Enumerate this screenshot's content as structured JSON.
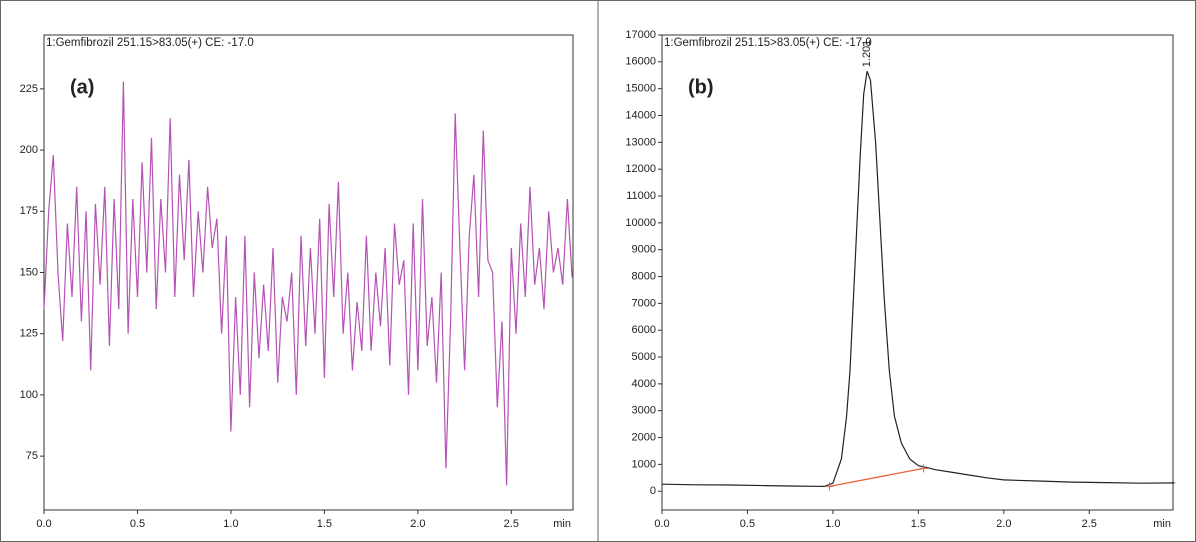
{
  "chart_data": [
    {
      "type": "line",
      "title": "1:Gemfibrozil 251.15>83.05(+) CE: -17.0",
      "panel_label": "(a)",
      "xlabel": "min",
      "color": "#b552b5",
      "x": [
        0,
        0.025,
        0.05,
        0.075,
        0.1,
        0.125,
        0.15,
        0.175,
        0.2,
        0.225,
        0.25,
        0.275,
        0.3,
        0.325,
        0.35,
        0.375,
        0.4,
        0.425,
        0.45,
        0.475,
        0.5,
        0.525,
        0.55,
        0.575,
        0.6,
        0.625,
        0.65,
        0.675,
        0.7,
        0.725,
        0.75,
        0.775,
        0.8,
        0.825,
        0.85,
        0.875,
        0.9,
        0.925,
        0.95,
        0.975,
        1,
        1.025,
        1.05,
        1.075,
        1.1,
        1.125,
        1.15,
        1.175,
        1.2,
        1.225,
        1.25,
        1.275,
        1.3,
        1.325,
        1.35,
        1.375,
        1.4,
        1.425,
        1.45,
        1.475,
        1.5,
        1.525,
        1.55,
        1.575,
        1.6,
        1.625,
        1.65,
        1.675,
        1.7,
        1.725,
        1.75,
        1.775,
        1.8,
        1.825,
        1.85,
        1.875,
        1.9,
        1.925,
        1.95,
        1.975,
        2,
        2.025,
        2.05,
        2.075,
        2.1,
        2.125,
        2.15,
        2.175,
        2.2,
        2.225,
        2.25,
        2.275,
        2.3,
        2.325,
        2.35,
        2.375,
        2.4,
        2.425,
        2.45,
        2.475,
        2.5,
        2.525,
        2.55,
        2.575,
        2.6,
        2.625,
        2.65,
        2.675,
        2.7,
        2.725,
        2.75,
        2.775,
        2.8,
        2.825
      ],
      "values": [
        135,
        175,
        198,
        150,
        122,
        170,
        140,
        185,
        130,
        175,
        110,
        178,
        145,
        185,
        120,
        180,
        135,
        228,
        125,
        180,
        140,
        195,
        150,
        205,
        135,
        180,
        150,
        213,
        140,
        190,
        155,
        196,
        140,
        175,
        150,
        185,
        160,
        172,
        125,
        165,
        85,
        140,
        100,
        165,
        95,
        150,
        115,
        145,
        118,
        160,
        105,
        140,
        130,
        150,
        100,
        165,
        120,
        160,
        125,
        172,
        107,
        178,
        140,
        187,
        125,
        150,
        110,
        138,
        118,
        165,
        118,
        150,
        128,
        160,
        112,
        170,
        145,
        155,
        100,
        170,
        110,
        180,
        120,
        140,
        105,
        150,
        70,
        130,
        215,
        160,
        110,
        165,
        190,
        140,
        208,
        155,
        150,
        95,
        130,
        63,
        160,
        125,
        170,
        140,
        185,
        145,
        160,
        135,
        175,
        150,
        160,
        145,
        180,
        148
      ],
      "xlim": [
        0,
        2.83
      ],
      "ylim": [
        53,
        247
      ],
      "xticks": [
        {
          "value": 0,
          "label": "0.0"
        },
        0.5,
        {
          "value": 1,
          "label": "1.0"
        },
        1.5,
        {
          "value": 2,
          "label": "2.0"
        },
        2.5
      ],
      "yticks": [
        75,
        100,
        125,
        150,
        175,
        200,
        225
      ]
    },
    {
      "type": "line",
      "title": "1:Gemfibrozil 251.15>83.05(+) CE: -17.0",
      "panel_label": "(b)",
      "xlabel": "min",
      "color": "#222222",
      "x": [
        0,
        0.2,
        0.4,
        0.6,
        0.8,
        0.9,
        0.95,
        1.0,
        1.05,
        1.08,
        1.1,
        1.13,
        1.16,
        1.18,
        1.2,
        1.22,
        1.25,
        1.28,
        1.3,
        1.33,
        1.36,
        1.4,
        1.45,
        1.5,
        1.55,
        1.6,
        1.7,
        1.8,
        1.9,
        2.0,
        2.2,
        2.4,
        2.6,
        2.8,
        3.0
      ],
      "values": [
        260,
        240,
        230,
        210,
        190,
        185,
        180,
        300,
        1200,
        2800,
        4500,
        8500,
        12500,
        14800,
        15650,
        15300,
        13000,
        9500,
        7200,
        4500,
        2800,
        1800,
        1200,
        950,
        880,
        800,
        700,
        600,
        500,
        420,
        380,
        340,
        320,
        300,
        310
      ],
      "peak": {
        "value": 1.201,
        "label": "1.201"
      },
      "baseline": {
        "x": [
          0.98,
          1.53
        ],
        "values": [
          180,
          850
        ],
        "color": "#e8623a"
      },
      "xlim": [
        0,
        2.99
      ],
      "ylim": [
        -700,
        17000
      ],
      "xticks": [
        {
          "value": 0,
          "label": "0.0"
        },
        0.5,
        {
          "value": 1,
          "label": "1.0"
        },
        1.5,
        {
          "value": 2,
          "label": "2.0"
        },
        2.5
      ],
      "yticks": [
        0,
        1000,
        2000,
        3000,
        4000,
        5000,
        6000,
        7000,
        8000,
        9000,
        10000,
        11000,
        12000,
        13000,
        14000,
        15000,
        16000,
        17000
      ]
    }
  ]
}
